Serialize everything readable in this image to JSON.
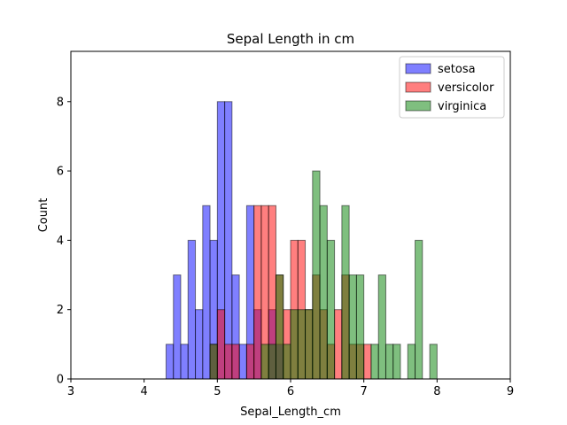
{
  "chart_data": {
    "type": "bar",
    "title": "Sepal Length in cm",
    "xlabel": "Sepal_Length_cm",
    "ylabel": "Count",
    "xlim": [
      3,
      9
    ],
    "ylim": [
      0,
      9.45
    ],
    "xticks": [
      "3",
      "4",
      "5",
      "6",
      "7",
      "8",
      "9"
    ],
    "yticks": [
      "0",
      "2",
      "4",
      "6",
      "8"
    ],
    "grid": false,
    "legend_position": "top-right",
    "bin_width": 0.1,
    "series": [
      {
        "name": "setosa",
        "color": "#0000ff",
        "bins": [
          [
            4.3,
            1
          ],
          [
            4.4,
            3
          ],
          [
            4.5,
            1
          ],
          [
            4.6,
            4
          ],
          [
            4.7,
            2
          ],
          [
            4.8,
            5
          ],
          [
            4.9,
            4
          ],
          [
            5.0,
            8
          ],
          [
            5.1,
            8
          ],
          [
            5.2,
            3
          ],
          [
            5.3,
            1
          ],
          [
            5.4,
            5
          ],
          [
            5.5,
            2
          ],
          [
            5.7,
            2
          ],
          [
            5.8,
            1
          ]
        ]
      },
      {
        "name": "versicolor",
        "color": "#ff0000",
        "bins": [
          [
            4.9,
            1
          ],
          [
            5.0,
            2
          ],
          [
            5.1,
            1
          ],
          [
            5.2,
            1
          ],
          [
            5.4,
            1
          ],
          [
            5.5,
            5
          ],
          [
            5.6,
            5
          ],
          [
            5.7,
            5
          ],
          [
            5.8,
            3
          ],
          [
            5.9,
            2
          ],
          [
            6.0,
            4
          ],
          [
            6.1,
            4
          ],
          [
            6.2,
            2
          ],
          [
            6.3,
            3
          ],
          [
            6.4,
            2
          ],
          [
            6.5,
            1
          ],
          [
            6.6,
            2
          ],
          [
            6.7,
            3
          ],
          [
            6.8,
            1
          ],
          [
            6.9,
            1
          ],
          [
            7.0,
            1
          ]
        ]
      },
      {
        "name": "virginica",
        "color": "#008000",
        "bins": [
          [
            4.9,
            1
          ],
          [
            5.6,
            1
          ],
          [
            5.7,
            1
          ],
          [
            5.8,
            3
          ],
          [
            5.9,
            1
          ],
          [
            6.0,
            2
          ],
          [
            6.1,
            2
          ],
          [
            6.2,
            2
          ],
          [
            6.3,
            6
          ],
          [
            6.4,
            5
          ],
          [
            6.5,
            4
          ],
          [
            6.7,
            5
          ],
          [
            6.8,
            3
          ],
          [
            6.9,
            3
          ],
          [
            7.1,
            1
          ],
          [
            7.2,
            3
          ],
          [
            7.3,
            1
          ],
          [
            7.4,
            1
          ],
          [
            7.6,
            1
          ],
          [
            7.7,
            4
          ],
          [
            7.9,
            1
          ]
        ]
      }
    ]
  }
}
